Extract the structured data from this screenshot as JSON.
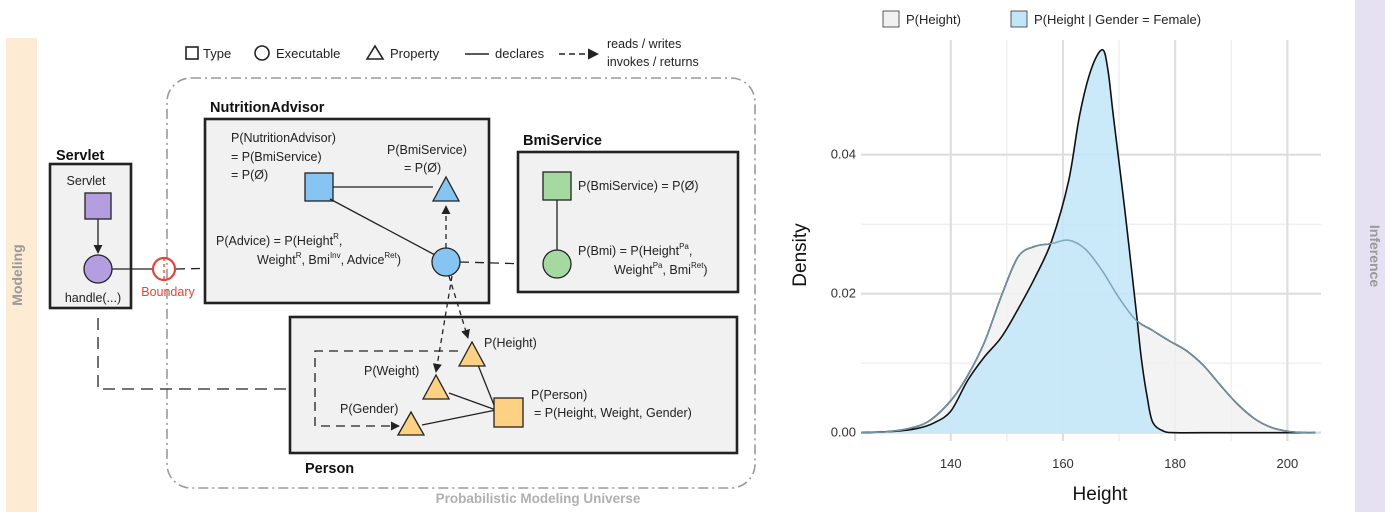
{
  "side_labels": {
    "left": "Modeling",
    "right": "Inference"
  },
  "diagram_legend": {
    "type": "Type",
    "executable": "Executable",
    "property": "Property",
    "declares": "declares",
    "reads_line1": "reads / writes",
    "reads_line2": "invokes / returns"
  },
  "universe_label": "Probabilistic Modeling Universe",
  "boundary_label": "Boundary",
  "servlet": {
    "title": "Servlet",
    "type_label": "Servlet",
    "exec_label": "handle(...)"
  },
  "nutrition": {
    "title": "NutritionAdvisor",
    "type_label_1": "P(NutritionAdvisor)",
    "type_label_2": "= P(BmiService)",
    "type_label_3": "= P(Ø)",
    "prop_label_1": "P(BmiService)",
    "prop_label_2": "= P(Ø)",
    "exec_l1_a": "P(Advice) = P(Height",
    "exec_l1_sup": "R",
    "exec_l1_b": ",",
    "exec_l2_a": "Weight",
    "exec_l2_sup1": "R",
    "exec_l2_b": ", Bmi",
    "exec_l2_sup2": "Inv",
    "exec_l2_c": ", Advice",
    "exec_l2_sup3": "Ret",
    "exec_l2_d": ")"
  },
  "bmi": {
    "title": "BmiService",
    "type_label": "P(BmiService) = P(Ø)",
    "exec_l1_a": "P(Bmi) = P(Height",
    "exec_l1_sup": "Pa",
    "exec_l1_b": ",",
    "exec_l2_a": "Weight",
    "exec_l2_sup1": "Pa",
    "exec_l2_b": ", Bmi",
    "exec_l2_sup2": "Ret",
    "exec_l2_c": ")"
  },
  "person": {
    "title": "Person",
    "height": "P(Height)",
    "weight": "P(Weight)",
    "gender": "P(Gender)",
    "type_label_1": "P(Person)",
    "type_label_2": "= P(Height, Weight, Gender)"
  },
  "colors": {
    "servlet": "#b49ee0",
    "nutrition": "#86c5f2",
    "bmi": "#a6d9a2",
    "person": "#fcd183",
    "boundary": "#e0463a",
    "panel_left": "#fdebd3",
    "panel_right": "#e5e1f2",
    "female_fill": "#c2e6f8",
    "overall_fill": "#f1f1f1"
  },
  "chart_data": {
    "type": "area",
    "xlabel": "Height",
    "ylabel": "Density",
    "xlim": [
      124,
      206
    ],
    "ylim": [
      -0.0012,
      0.0565
    ],
    "x_ticks": [
      140,
      160,
      180,
      200
    ],
    "x_tick_labels": [
      "140",
      "160",
      "180",
      "200"
    ],
    "y_ticks": [
      0.0,
      0.02,
      0.04
    ],
    "y_tick_labels": [
      "0.00",
      "0.02",
      "0.04"
    ],
    "grid": true,
    "legend_position": "top",
    "series": [
      {
        "name": "P(Height)",
        "color": "#f1f1f1",
        "x": [
          124,
          128,
          132,
          136,
          140,
          143,
          146,
          149,
          152,
          155,
          158,
          161,
          164,
          167,
          170,
          173,
          176,
          179,
          182,
          185,
          188,
          191,
          194,
          197,
          200,
          203,
          205
        ],
        "y": [
          0.0,
          0.0001,
          0.0005,
          0.0016,
          0.0046,
          0.0082,
          0.013,
          0.0196,
          0.0253,
          0.0268,
          0.0272,
          0.0277,
          0.0264,
          0.0233,
          0.0194,
          0.0162,
          0.0147,
          0.0132,
          0.0118,
          0.0097,
          0.0069,
          0.0042,
          0.0021,
          0.0008,
          0.0002,
          0.0,
          0.0
        ]
      },
      {
        "name": "P(Height | Gender = Female)",
        "color": "#c2e6f8",
        "x": [
          124,
          130,
          134,
          137,
          140,
          143,
          146,
          149,
          152,
          155,
          158,
          161,
          163,
          165,
          167,
          168,
          169,
          171,
          173,
          174,
          175,
          176,
          178,
          180,
          185,
          205
        ],
        "y": [
          0.0,
          0.0002,
          0.0006,
          0.0014,
          0.0031,
          0.0075,
          0.0109,
          0.0137,
          0.0178,
          0.0223,
          0.0276,
          0.0362,
          0.0458,
          0.0522,
          0.0551,
          0.0523,
          0.0455,
          0.0322,
          0.0179,
          0.0105,
          0.0052,
          0.0015,
          0.0002,
          0.0,
          0.0,
          0.0
        ]
      }
    ]
  }
}
